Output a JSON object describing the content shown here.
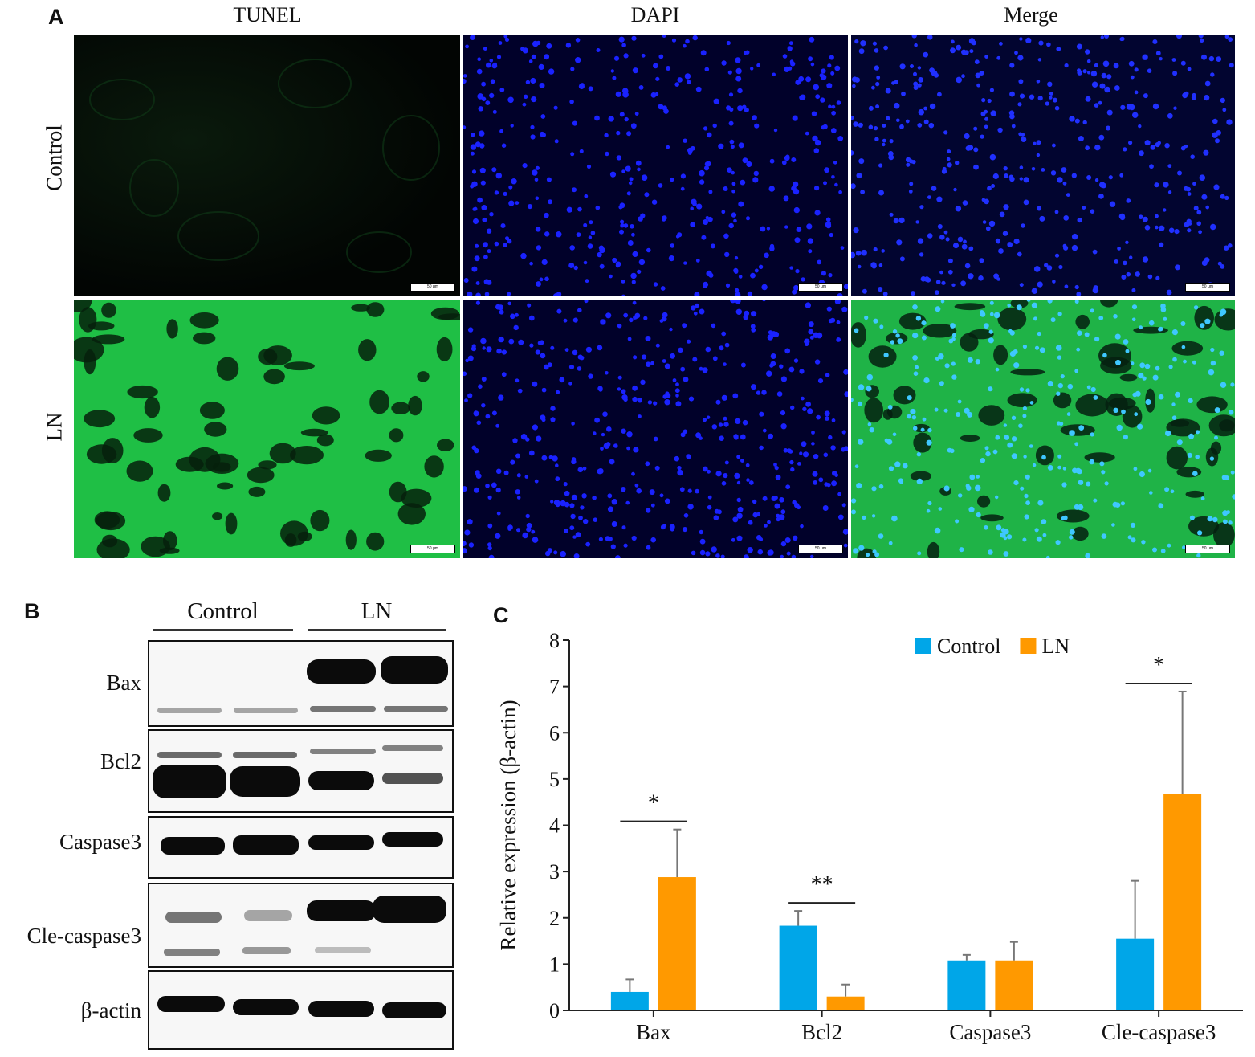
{
  "panels": {
    "a": "A",
    "b": "B",
    "c": "C"
  },
  "panel_a": {
    "columns": [
      "TUNEL",
      "DAPI",
      "Merge"
    ],
    "rows": [
      "Control",
      "LN"
    ],
    "scale_bar_label": "50 μm"
  },
  "panel_b": {
    "groups": [
      "Control",
      "LN"
    ],
    "proteins": [
      "Bax",
      "Bcl2",
      "Caspase3",
      "Cle-caspase3",
      "β-actin"
    ]
  },
  "chart_data": {
    "type": "bar",
    "categories": [
      "Bax",
      "Bcl2",
      "Caspase3",
      "Cle-caspase3"
    ],
    "series": [
      {
        "name": "Control",
        "values": [
          0.4,
          1.83,
          1.08,
          1.55
        ],
        "errors": [
          0.27,
          0.32,
          0.12,
          1.25
        ],
        "color": "#00a6e8"
      },
      {
        "name": "LN",
        "values": [
          2.88,
          0.3,
          1.08,
          4.68
        ],
        "errors": [
          1.03,
          0.26,
          0.4,
          2.21
        ],
        "color": "#ff9900"
      }
    ],
    "significance": [
      "*",
      "**",
      "",
      "*"
    ],
    "ylabel": "Relative expression (β-actin)",
    "xlabel": "",
    "ylim": [
      0,
      8
    ],
    "yticks": [
      0,
      1,
      2,
      3,
      4,
      5,
      6,
      7,
      8
    ],
    "legend_position": "top-right",
    "grid": false
  }
}
